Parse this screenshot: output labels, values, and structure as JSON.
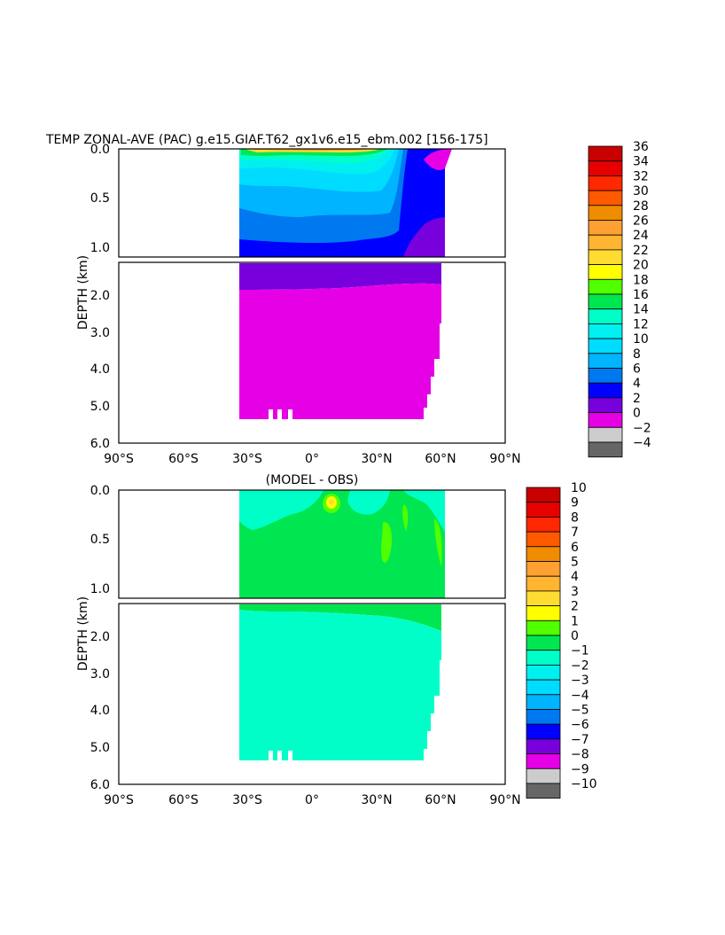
{
  "chart_data": [
    {
      "type": "heatmap",
      "title": "TEMP ZONAL-AVE (PAC) g.e15.GIAF.T62_gx1v6.e15_ebm.002 [156-175]",
      "ylabel": "DEPTH (km)",
      "upper_yticks": [
        "0.0",
        "0.5",
        "1.0"
      ],
      "lower_yticks": [
        "2.0",
        "3.0",
        "4.0",
        "5.0",
        "6.0"
      ],
      "xticks": [
        "90°S",
        "60°S",
        "30°S",
        "0°",
        "30°N",
        "60°N",
        "90°N"
      ],
      "xlim": [
        -90,
        90
      ],
      "ylim_upper_km": [
        0,
        1.1
      ],
      "ylim_lower_km": [
        1.1,
        6.0
      ],
      "colorbar": {
        "labels": [
          "36",
          "34",
          "32",
          "30",
          "28",
          "26",
          "24",
          "22",
          "20",
          "18",
          "16",
          "14",
          "12",
          "10",
          "8",
          "6",
          "4",
          "2",
          "0",
          "-2",
          "-4"
        ],
        "colors": [
          "#c80000",
          "#e60000",
          "#ff2800",
          "#ff5a00",
          "#f08c00",
          "#ffa032",
          "#ffb432",
          "#ffdc32",
          "#ffff00",
          "#50ff00",
          "#00e650",
          "#00ffc8",
          "#00f0f0",
          "#00dcff",
          "#00b4ff",
          "#0078f0",
          "#0000ff",
          "#7800dc",
          "#e600e6",
          "#cccccc",
          "#666666"
        ]
      }
    },
    {
      "type": "heatmap",
      "title": "(MODEL - OBS)",
      "ylabel": "DEPTH (km)",
      "upper_yticks": [
        "0.0",
        "0.5",
        "1.0"
      ],
      "lower_yticks": [
        "2.0",
        "3.0",
        "4.0",
        "5.0",
        "6.0"
      ],
      "xticks": [
        "90°S",
        "60°S",
        "30°S",
        "0°",
        "30°N",
        "60°N",
        "90°N"
      ],
      "xlim": [
        -90,
        90
      ],
      "colorbar": {
        "labels": [
          "10",
          "9",
          "8",
          "7",
          "6",
          "5",
          "4",
          "3",
          "2",
          "1",
          "0",
          "-1",
          "-2",
          "-3",
          "-4",
          "-5",
          "-6",
          "-7",
          "-8",
          "-9",
          "-10"
        ],
        "colors": [
          "#c80000",
          "#e60000",
          "#ff2800",
          "#ff5a00",
          "#f08c00",
          "#ffa032",
          "#ffb432",
          "#ffdc32",
          "#ffff00",
          "#50ff00",
          "#00e650",
          "#00ffc8",
          "#00f0f0",
          "#00dcff",
          "#00b4ff",
          "#0078f0",
          "#0000ff",
          "#7800dc",
          "#e600e6",
          "#cccccc",
          "#666666"
        ]
      }
    }
  ]
}
